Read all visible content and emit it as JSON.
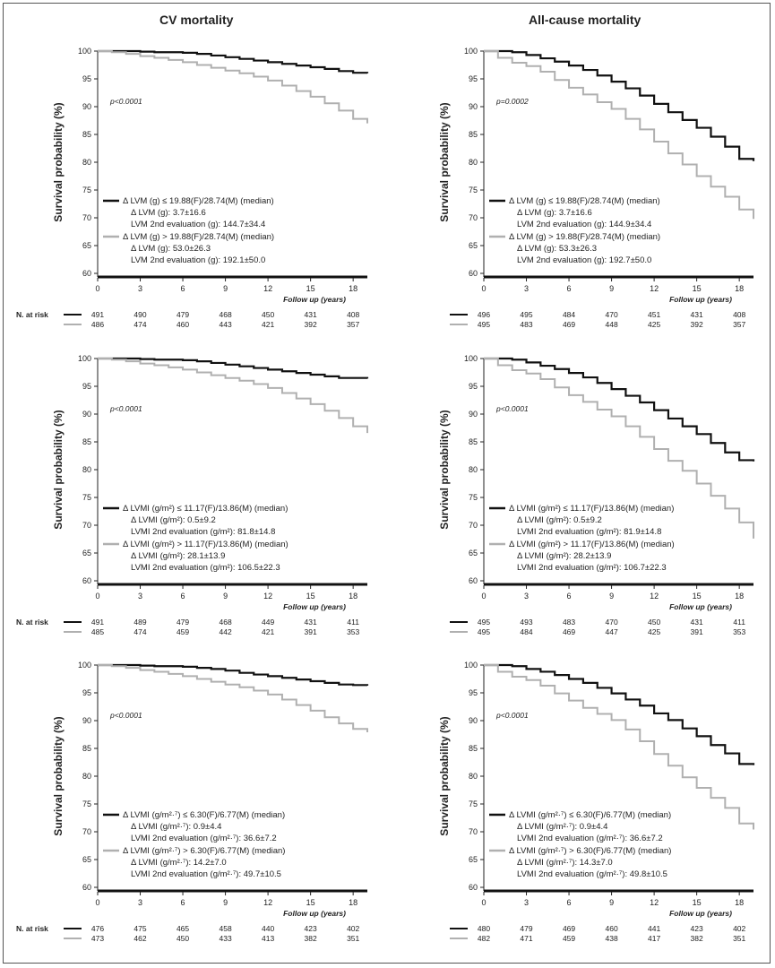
{
  "column_titles": [
    "CV mortality",
    "All-cause mortality"
  ],
  "colors": {
    "group_low": "#111111",
    "group_high": "#b0b0b0"
  },
  "chart_data": [
    {
      "type": "line",
      "panel": "CV mortality - LVM",
      "ylabel": "Survival probability (%)",
      "xlabel": "Follow up (years)",
      "xlim": [
        0,
        19
      ],
      "ylim": [
        60,
        100
      ],
      "xticks": [
        0,
        3,
        6,
        9,
        12,
        15,
        18
      ],
      "yticks": [
        60,
        65,
        70,
        75,
        80,
        85,
        90,
        95,
        100
      ],
      "pvalue": "p<0.0001",
      "legend": [
        {
          "label": "Δ LVM (g) ≤ 19.88(F)/28.74(M) (median)",
          "sub": [
            "Δ LVM (g): 3.7±16.6",
            "LVM 2nd evaluation (g): 144.7±34.4"
          ]
        },
        {
          "label": "Δ LVM (g) > 19.88(F)/28.74(M) (median)",
          "sub": [
            "Δ LVM (g): 53.0±26.3",
            "LVM 2nd evaluation (g): 192.1±50.0"
          ]
        }
      ],
      "series": [
        {
          "x": [
            0,
            1,
            2,
            3,
            4,
            5,
            6,
            7,
            8,
            9,
            10,
            11,
            12,
            13,
            14,
            15,
            16,
            17,
            18,
            19
          ],
          "values": [
            100,
            100,
            100,
            99.9,
            99.8,
            99.8,
            99.7,
            99.5,
            99.2,
            98.9,
            98.6,
            98.3,
            98.0,
            97.7,
            97.4,
            97.1,
            96.8,
            96.4,
            96.1,
            96.0
          ]
        },
        {
          "x": [
            0,
            1,
            2,
            3,
            4,
            5,
            6,
            7,
            8,
            9,
            10,
            11,
            12,
            13,
            14,
            15,
            16,
            17,
            18,
            19
          ],
          "values": [
            100,
            99.8,
            99.5,
            99.1,
            98.8,
            98.4,
            98.0,
            97.5,
            97.0,
            96.5,
            96.0,
            95.4,
            94.7,
            93.8,
            92.8,
            91.8,
            90.6,
            89.3,
            87.8,
            87.0
          ]
        }
      ],
      "risk_label": "N. at risk",
      "risk": [
        [
          "491",
          "490",
          "479",
          "468",
          "450",
          "431",
          "408"
        ],
        [
          "486",
          "474",
          "460",
          "443",
          "421",
          "392",
          "357"
        ]
      ]
    },
    {
      "type": "line",
      "panel": "All-cause mortality - LVM",
      "ylabel": "Survival probability (%)",
      "xlabel": "Follow up (years)",
      "xlim": [
        0,
        19
      ],
      "ylim": [
        60,
        100
      ],
      "xticks": [
        0,
        3,
        6,
        9,
        12,
        15,
        18
      ],
      "yticks": [
        60,
        65,
        70,
        75,
        80,
        85,
        90,
        95,
        100
      ],
      "pvalue": "p=0.0002",
      "legend": [
        {
          "label": "Δ LVM (g) ≤ 19.88(F)/28.74(M) (median)",
          "sub": [
            "Δ LVM (g): 3.7±16.6",
            "LVM 2nd evaluation (g): 144.9±34.4"
          ]
        },
        {
          "label": "Δ LVM (g) > 19.88(F)/28.74(M) (median)",
          "sub": [
            "Δ LVM (g): 53.3±26.3",
            "LVM 2nd evaluation (g): 192.7±50.0"
          ]
        }
      ],
      "series": [
        {
          "x": [
            0,
            1,
            2,
            3,
            4,
            5,
            6,
            7,
            8,
            9,
            10,
            11,
            12,
            13,
            14,
            15,
            16,
            17,
            18,
            19
          ],
          "values": [
            100,
            100,
            99.8,
            99.3,
            98.7,
            98.1,
            97.4,
            96.6,
            95.6,
            94.5,
            93.3,
            92.0,
            90.5,
            89.0,
            87.6,
            86.2,
            84.6,
            82.8,
            80.6,
            80.2
          ]
        },
        {
          "x": [
            0,
            1,
            2,
            3,
            4,
            5,
            6,
            7,
            8,
            9,
            10,
            11,
            12,
            13,
            14,
            15,
            16,
            17,
            18,
            19
          ],
          "values": [
            100,
            98.8,
            97.9,
            97.3,
            96.3,
            94.8,
            93.4,
            92.2,
            90.8,
            89.6,
            87.8,
            85.9,
            83.7,
            81.6,
            79.6,
            77.5,
            75.6,
            73.8,
            71.5,
            69.8
          ]
        }
      ],
      "risk_label": "N. at risk",
      "risk": [
        [
          "496",
          "495",
          "484",
          "470",
          "451",
          "431",
          "408"
        ],
        [
          "495",
          "483",
          "469",
          "448",
          "425",
          "392",
          "357"
        ]
      ]
    },
    {
      "type": "line",
      "panel": "CV mortality - LVMI g/m2",
      "ylabel": "Survival probability (%)",
      "xlabel": "Follow up (years)",
      "xlim": [
        0,
        19
      ],
      "ylim": [
        60,
        100
      ],
      "xticks": [
        0,
        3,
        6,
        9,
        12,
        15,
        18
      ],
      "yticks": [
        60,
        65,
        70,
        75,
        80,
        85,
        90,
        95,
        100
      ],
      "pvalue": "p<0.0001",
      "legend": [
        {
          "label": "Δ LVMI (g/m²) ≤ 11.17(F)/13.86(M) (median)",
          "sub": [
            "Δ LVMI (g/m²): 0.5±9.2",
            "LVMI 2nd evaluation (g/m²): 81.8±14.8"
          ]
        },
        {
          "label": "Δ LVMI (g/m²) > 11.17(F)/13.86(M) (median)",
          "sub": [
            "Δ LVMI (g/m²): 28.1±13.9",
            "LVMI 2nd evaluation (g/m²): 106.5±22.3"
          ]
        }
      ],
      "series": [
        {
          "x": [
            0,
            1,
            2,
            3,
            4,
            5,
            6,
            7,
            8,
            9,
            10,
            11,
            12,
            13,
            14,
            15,
            16,
            17,
            18,
            19
          ],
          "values": [
            100,
            100,
            100,
            99.9,
            99.8,
            99.8,
            99.7,
            99.5,
            99.2,
            98.9,
            98.6,
            98.3,
            98.0,
            97.7,
            97.4,
            97.1,
            96.8,
            96.5,
            96.5,
            96.4
          ]
        },
        {
          "x": [
            0,
            1,
            2,
            3,
            4,
            5,
            6,
            7,
            8,
            9,
            10,
            11,
            12,
            13,
            14,
            15,
            16,
            17,
            18,
            19
          ],
          "values": [
            100,
            99.8,
            99.5,
            99.1,
            98.8,
            98.4,
            98.0,
            97.5,
            97.0,
            96.5,
            96.0,
            95.4,
            94.7,
            93.8,
            92.8,
            91.8,
            90.6,
            89.3,
            87.8,
            86.6
          ]
        }
      ],
      "risk_label": "N. at risk",
      "risk": [
        [
          "491",
          "489",
          "479",
          "468",
          "449",
          "431",
          "411"
        ],
        [
          "485",
          "474",
          "459",
          "442",
          "421",
          "391",
          "353"
        ]
      ]
    },
    {
      "type": "line",
      "panel": "All-cause mortality - LVMI g/m2",
      "ylabel": "Survival probability (%)",
      "xlabel": "Follow up (years)",
      "xlim": [
        0,
        19
      ],
      "ylim": [
        60,
        100
      ],
      "xticks": [
        0,
        3,
        6,
        9,
        12,
        15,
        18
      ],
      "yticks": [
        60,
        65,
        70,
        75,
        80,
        85,
        90,
        95,
        100
      ],
      "pvalue": "p<0.0001",
      "legend": [
        {
          "label": "Δ LVMI (g/m²) ≤ 11.17(F)/13.86(M) (median)",
          "sub": [
            "Δ LVMI (g/m²): 0.5±9.2",
            "LVMI 2nd evaluation (g/m²): 81.9±14.8"
          ]
        },
        {
          "label": "Δ LVMI (g/m²) > 11.17(F)/13.86(M) (median)",
          "sub": [
            "Δ LVMI (g/m²): 28.2±13.9",
            "LVMI 2nd evaluation (g/m²): 106.7±22.3"
          ]
        }
      ],
      "series": [
        {
          "x": [
            0,
            1,
            2,
            3,
            4,
            5,
            6,
            7,
            8,
            9,
            10,
            11,
            12,
            13,
            14,
            15,
            16,
            17,
            18,
            19
          ],
          "values": [
            100,
            100,
            99.8,
            99.3,
            98.7,
            98.1,
            97.4,
            96.6,
            95.6,
            94.5,
            93.3,
            92.1,
            90.7,
            89.2,
            87.8,
            86.4,
            84.8,
            83.1,
            81.7,
            81.5
          ]
        },
        {
          "x": [
            0,
            1,
            2,
            3,
            4,
            5,
            6,
            7,
            8,
            9,
            10,
            11,
            12,
            13,
            14,
            15,
            16,
            17,
            18,
            19
          ],
          "values": [
            100,
            98.8,
            97.9,
            97.3,
            96.3,
            94.8,
            93.4,
            92.2,
            90.8,
            89.6,
            87.8,
            85.9,
            83.7,
            81.6,
            79.8,
            77.5,
            75.3,
            73.0,
            70.5,
            67.6
          ]
        }
      ],
      "risk_label": "N. at risk",
      "risk": [
        [
          "495",
          "493",
          "483",
          "470",
          "450",
          "431",
          "411"
        ],
        [
          "495",
          "484",
          "469",
          "447",
          "425",
          "391",
          "353"
        ]
      ]
    },
    {
      "type": "line",
      "panel": "CV mortality - LVMI g/m2.7",
      "ylabel": "Survival probability (%)",
      "xlabel": "Follow up (years)",
      "xlim": [
        0,
        19
      ],
      "ylim": [
        60,
        100
      ],
      "xticks": [
        0,
        3,
        6,
        9,
        12,
        15,
        18
      ],
      "yticks": [
        60,
        65,
        70,
        75,
        80,
        85,
        90,
        95,
        100
      ],
      "pvalue": "p<0.0001",
      "legend": [
        {
          "label": "Δ LVMI (g/m²·⁷) ≤ 6.30(F)/6.77(M) (median)",
          "sub": [
            "Δ LVMI (g/m²·⁷): 0.9±4.4",
            "LVMI 2nd evaluation (g/m²·⁷): 36.6±7.2"
          ]
        },
        {
          "label": "Δ LVMI (g/m²·⁷) > 6.30(F)/6.77(M) (median)",
          "sub": [
            "Δ LVMI (g/m²·⁷): 14.2±7.0",
            "LVMI 2nd evaluation (g/m²·⁷): 49.7±10.5"
          ]
        }
      ],
      "series": [
        {
          "x": [
            0,
            1,
            2,
            3,
            4,
            5,
            6,
            7,
            8,
            9,
            10,
            11,
            12,
            13,
            14,
            15,
            16,
            17,
            18,
            19
          ],
          "values": [
            100,
            100,
            100,
            99.9,
            99.8,
            99.8,
            99.7,
            99.5,
            99.3,
            99.0,
            98.6,
            98.3,
            98.0,
            97.7,
            97.4,
            97.1,
            96.8,
            96.5,
            96.4,
            96.3
          ]
        },
        {
          "x": [
            0,
            1,
            2,
            3,
            4,
            5,
            6,
            7,
            8,
            9,
            10,
            11,
            12,
            13,
            14,
            15,
            16,
            17,
            18,
            19
          ],
          "values": [
            100,
            99.8,
            99.5,
            99.1,
            98.8,
            98.4,
            98.0,
            97.5,
            97.0,
            96.5,
            96.0,
            95.4,
            94.7,
            93.8,
            92.8,
            91.8,
            90.6,
            89.5,
            88.5,
            87.9
          ]
        }
      ],
      "risk_label": "N. at risk",
      "risk": [
        [
          "476",
          "475",
          "465",
          "458",
          "440",
          "423",
          "402"
        ],
        [
          "473",
          "462",
          "450",
          "433",
          "413",
          "382",
          "351"
        ]
      ]
    },
    {
      "type": "line",
      "panel": "All-cause mortality - LVMI g/m2.7",
      "ylabel": "Survival probability (%)",
      "xlabel": "Follow up (years)",
      "xlim": [
        0,
        19
      ],
      "ylim": [
        60,
        100
      ],
      "xticks": [
        0,
        3,
        6,
        9,
        12,
        15,
        18
      ],
      "yticks": [
        60,
        65,
        70,
        75,
        80,
        85,
        90,
        95,
        100
      ],
      "pvalue": "p<0.0001",
      "legend": [
        {
          "label": "Δ LVMI (g/m²·⁷) ≤ 6.30(F)/6.77(M) (median)",
          "sub": [
            "Δ LVMI (g/m²·⁷): 0.9±4.4",
            "LVMI 2nd evaluation (g/m²·⁷): 36.6±7.2"
          ]
        },
        {
          "label": "Δ LVMI (g/m²·⁷) > 6.30(F)/6.77(M) (median)",
          "sub": [
            "Δ LVMI (g/m²·⁷): 14.3±7.0",
            "LVMI 2nd evaluation (g/m²·⁷): 49.8±10.5"
          ]
        }
      ],
      "series": [
        {
          "x": [
            0,
            1,
            2,
            3,
            4,
            5,
            6,
            7,
            8,
            9,
            10,
            11,
            12,
            13,
            14,
            15,
            16,
            17,
            18,
            19
          ],
          "values": [
            100,
            100,
            99.8,
            99.3,
            98.8,
            98.2,
            97.5,
            96.8,
            95.9,
            94.9,
            93.8,
            92.7,
            91.3,
            90.1,
            88.6,
            87.2,
            85.6,
            84.1,
            82.2,
            82.0
          ]
        },
        {
          "x": [
            0,
            1,
            2,
            3,
            4,
            5,
            6,
            7,
            8,
            9,
            10,
            11,
            12,
            13,
            14,
            15,
            16,
            17,
            18,
            19
          ],
          "values": [
            100,
            98.8,
            97.9,
            97.3,
            96.3,
            94.9,
            93.6,
            92.3,
            91.2,
            90.1,
            88.4,
            86.3,
            84.0,
            81.9,
            79.8,
            77.9,
            76.1,
            74.3,
            71.5,
            70.4
          ]
        }
      ],
      "risk_label": "N. at risk",
      "risk": [
        [
          "480",
          "479",
          "469",
          "460",
          "441",
          "423",
          "402"
        ],
        [
          "482",
          "471",
          "459",
          "438",
          "417",
          "382",
          "351"
        ]
      ]
    }
  ]
}
